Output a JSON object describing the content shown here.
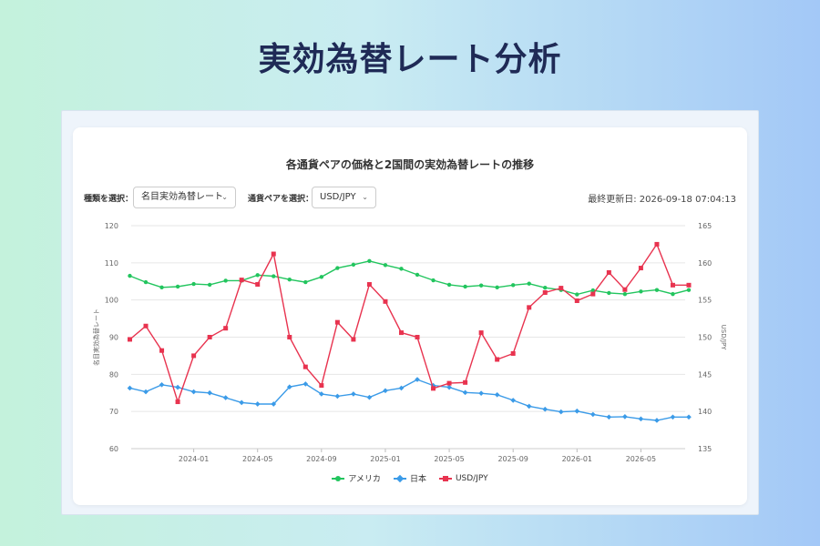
{
  "page": {
    "title": "実効為替レート分析"
  },
  "controls": {
    "type_label": "種類を選択：",
    "type_value": "名目実効為替レート",
    "pair_label": "通貨ペアを選択：",
    "pair_value": "USD/JPY",
    "chevron_icon": "chevron-down-icon",
    "updated": "最終更新日: 2026-09-18 07:04:13"
  },
  "colors": {
    "america": "#22c55e",
    "japan": "#3b9be8",
    "usdjpy": "#e8334f",
    "grid": "#e6e6e6",
    "text": "#666666"
  },
  "chart_data": {
    "type": "line",
    "title": "各通貨ペアの価格と2国間の実効為替レートの推移",
    "x": [
      "2023-09",
      "2023-10",
      "2023-11",
      "2023-12",
      "2024-01",
      "2024-02",
      "2024-03",
      "2024-04",
      "2024-05",
      "2024-06",
      "2024-07",
      "2024-08",
      "2024-09",
      "2024-10",
      "2024-11",
      "2024-12",
      "2025-01",
      "2025-02",
      "2025-03",
      "2025-04",
      "2025-05",
      "2025-06",
      "2025-07",
      "2025-08",
      "2025-09",
      "2025-10",
      "2025-11",
      "2025-12",
      "2026-01",
      "2026-02",
      "2026-03",
      "2026-04",
      "2026-05",
      "2026-06",
      "2026-07",
      "2026-08"
    ],
    "x_ticks": [
      "2024-01",
      "2024-05",
      "2024-09",
      "2025-01",
      "2025-05",
      "2025-09",
      "2026-01",
      "2026-05"
    ],
    "ylabel_left": "名目実効為替レート",
    "ylabel_right": "USD/JPY",
    "ylim_left": [
      60,
      120
    ],
    "yticks_left": [
      60,
      70,
      80,
      90,
      100,
      110,
      120
    ],
    "ylim_right": [
      135,
      165
    ],
    "yticks_right": [
      135,
      140,
      145,
      150,
      155,
      160,
      165
    ],
    "grid": true,
    "legend_position": "bottom",
    "series": [
      {
        "name": "アメリカ",
        "axis": "left",
        "marker": "circle",
        "color": "#22c55e",
        "values": [
          106.5,
          104.8,
          103.4,
          103.6,
          104.3,
          104.1,
          105.2,
          105.2,
          106.7,
          106.4,
          105.5,
          104.8,
          106.2,
          108.6,
          109.5,
          110.5,
          109.4,
          108.4,
          106.8,
          105.3,
          104.1,
          103.6,
          103.9,
          103.4,
          104.0,
          104.4,
          103.3,
          102.7,
          101.5,
          102.6,
          101.9,
          101.6,
          102.3,
          102.7,
          101.6,
          102.7
        ]
      },
      {
        "name": "日本",
        "axis": "left",
        "marker": "diamond",
        "color": "#3b9be8",
        "values": [
          76.3,
          75.3,
          77.2,
          76.5,
          75.3,
          75.0,
          73.7,
          72.4,
          72.0,
          72.0,
          76.6,
          77.4,
          74.7,
          74.1,
          74.7,
          73.8,
          75.6,
          76.3,
          78.6,
          77.0,
          76.5,
          75.1,
          74.9,
          74.5,
          73.0,
          71.4,
          70.6,
          69.9,
          70.1,
          69.2,
          68.5,
          68.6,
          68.0,
          67.6,
          68.5,
          68.5
        ]
      },
      {
        "name": "USD/JPY",
        "axis": "right",
        "marker": "square",
        "color": "#e8334f",
        "values": [
          149.7,
          151.5,
          148.2,
          141.3,
          147.5,
          150.0,
          151.2,
          157.7,
          157.1,
          161.2,
          150.0,
          146.0,
          143.5,
          152.0,
          149.7,
          157.1,
          154.8,
          150.6,
          150.0,
          143.1,
          143.8,
          143.9,
          150.6,
          147.0,
          147.8,
          154.0,
          156.0,
          156.6,
          154.9,
          155.8,
          158.7,
          156.4,
          159.3,
          162.5,
          157.0,
          157.0
        ]
      }
    ]
  },
  "legend": [
    "アメリカ",
    "日本",
    "USD/JPY"
  ]
}
